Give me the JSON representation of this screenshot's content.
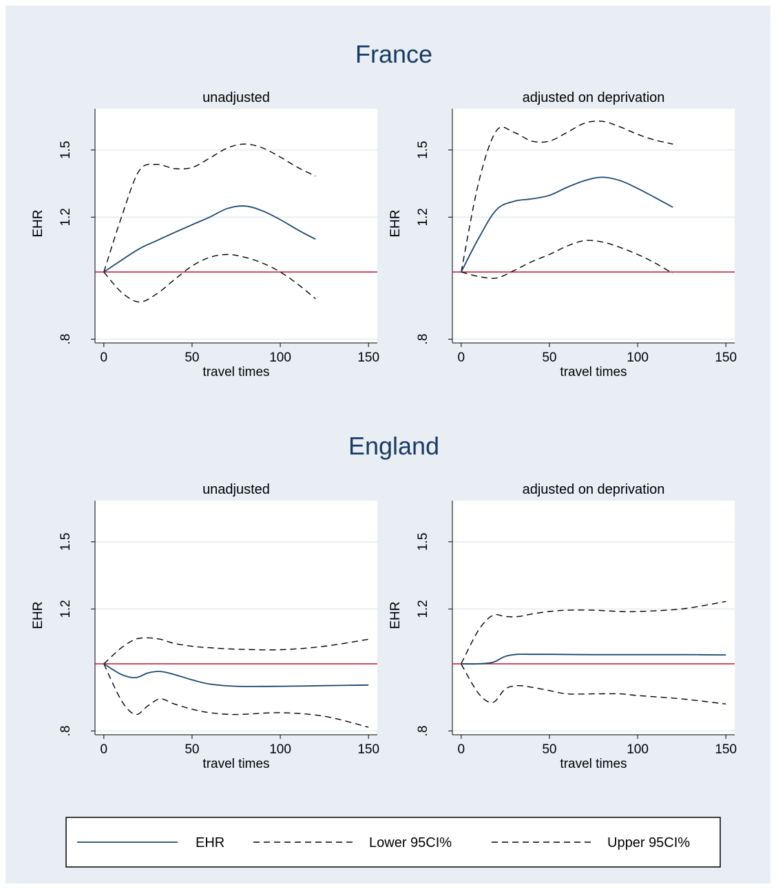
{
  "chart_data": [
    {
      "section": "France",
      "title": "unadjusted",
      "type": "line",
      "xlabel": "travel times",
      "ylabel": "EHR",
      "xlim": [
        -5,
        155
      ],
      "ylim": [
        0.79,
        1.72
      ],
      "y_scale": "log",
      "xticks": [
        0,
        50,
        100,
        150
      ],
      "xtick_labels": [
        "0",
        "50",
        "100",
        "150"
      ],
      "yticks": [
        0.8,
        1.2,
        1.5
      ],
      "ytick_labels": [
        ".8",
        "1.2",
        "1.5"
      ],
      "reference_line": 1,
      "grid": true,
      "series": [
        {
          "name": "EHR",
          "style": "solid",
          "color": "#1a476f",
          "x": [
            0,
            10,
            20,
            30,
            40,
            50,
            60,
            70,
            80,
            90,
            100,
            110,
            120
          ],
          "y": [
            1.0,
            1.04,
            1.08,
            1.11,
            1.14,
            1.17,
            1.2,
            1.235,
            1.245,
            1.225,
            1.19,
            1.15,
            1.115
          ]
        },
        {
          "name": "Lower 95CI%",
          "style": "dashed",
          "color": "#000000",
          "x": [
            0,
            10,
            20,
            30,
            40,
            50,
            60,
            70,
            80,
            90,
            100,
            110,
            120
          ],
          "y": [
            1.0,
            0.935,
            0.905,
            0.93,
            0.975,
            1.02,
            1.05,
            1.06,
            1.05,
            1.03,
            1.0,
            0.96,
            0.915
          ]
        },
        {
          "name": "Upper 95CI%",
          "style": "dashed",
          "color": "#000000",
          "x": [
            0,
            10,
            20,
            30,
            40,
            50,
            60,
            70,
            80,
            90,
            100,
            110,
            120
          ],
          "y": [
            1.0,
            1.2,
            1.4,
            1.43,
            1.41,
            1.415,
            1.46,
            1.51,
            1.53,
            1.51,
            1.465,
            1.415,
            1.375
          ]
        }
      ]
    },
    {
      "section": "France",
      "title": "adjusted on deprivation",
      "type": "line",
      "xlabel": "travel times",
      "ylabel": "EHR",
      "xlim": [
        -5,
        155
      ],
      "ylim": [
        0.79,
        1.72
      ],
      "y_scale": "log",
      "xticks": [
        0,
        50,
        100,
        150
      ],
      "xtick_labels": [
        "0",
        "50",
        "100",
        "150"
      ],
      "yticks": [
        0.8,
        1.2,
        1.5
      ],
      "ytick_labels": [
        ".8",
        "1.2",
        "1.5"
      ],
      "reference_line": 1,
      "grid": true,
      "series": [
        {
          "name": "EHR",
          "style": "solid",
          "color": "#1a476f",
          "x": [
            0,
            10,
            20,
            30,
            40,
            50,
            60,
            70,
            80,
            90,
            100,
            110,
            120
          ],
          "y": [
            1.0,
            1.12,
            1.23,
            1.265,
            1.275,
            1.29,
            1.325,
            1.355,
            1.37,
            1.355,
            1.32,
            1.28,
            1.24
          ]
        },
        {
          "name": "Lower 95CI%",
          "style": "dashed",
          "color": "#000000",
          "x": [
            0,
            10,
            20,
            30,
            40,
            50,
            60,
            70,
            80,
            90,
            100,
            110,
            120
          ],
          "y": [
            1.0,
            0.985,
            0.98,
            1.005,
            1.035,
            1.06,
            1.09,
            1.11,
            1.105,
            1.085,
            1.06,
            1.03,
            0.995
          ]
        },
        {
          "name": "Upper 95CI%",
          "style": "dashed",
          "color": "#000000",
          "x": [
            0,
            10,
            20,
            30,
            40,
            50,
            60,
            70,
            80,
            90,
            100,
            110,
            120
          ],
          "y": [
            1.0,
            1.35,
            1.6,
            1.59,
            1.545,
            1.545,
            1.59,
            1.64,
            1.65,
            1.62,
            1.58,
            1.55,
            1.53
          ]
        }
      ]
    },
    {
      "section": "England",
      "title": "unadjusted",
      "type": "line",
      "xlabel": "travel times",
      "ylabel": "EHR",
      "xlim": [
        -5,
        155
      ],
      "ylim": [
        0.79,
        1.72
      ],
      "y_scale": "log",
      "xticks": [
        0,
        50,
        100,
        150
      ],
      "xtick_labels": [
        "0",
        "50",
        "100",
        "150"
      ],
      "yticks": [
        0.8,
        1.2,
        1.5
      ],
      "ytick_labels": [
        ".8",
        "1.2",
        "1.5"
      ],
      "reference_line": 1,
      "grid": true,
      "series": [
        {
          "name": "EHR",
          "style": "solid",
          "color": "#1a476f",
          "x": [
            0,
            10,
            18,
            25,
            32,
            40,
            50,
            60,
            75,
            100,
            125,
            150
          ],
          "y": [
            1.0,
            0.965,
            0.955,
            0.97,
            0.975,
            0.965,
            0.948,
            0.935,
            0.928,
            0.928,
            0.93,
            0.932
          ]
        },
        {
          "name": "Lower 95CI%",
          "style": "dashed",
          "color": "#000000",
          "x": [
            0,
            10,
            18,
            25,
            32,
            40,
            50,
            60,
            75,
            100,
            125,
            150
          ],
          "y": [
            1.0,
            0.885,
            0.845,
            0.87,
            0.89,
            0.875,
            0.86,
            0.85,
            0.845,
            0.85,
            0.84,
            0.81
          ]
        },
        {
          "name": "Upper 95CI%",
          "style": "dashed",
          "color": "#000000",
          "x": [
            0,
            10,
            18,
            25,
            32,
            40,
            50,
            60,
            75,
            100,
            125,
            150
          ],
          "y": [
            1.0,
            1.055,
            1.085,
            1.09,
            1.085,
            1.07,
            1.06,
            1.055,
            1.05,
            1.048,
            1.06,
            1.085
          ]
        }
      ]
    },
    {
      "section": "England",
      "title": "adjusted on deprivation",
      "type": "line",
      "xlabel": "travel times",
      "ylabel": "EHR",
      "xlim": [
        -5,
        155
      ],
      "ylim": [
        0.79,
        1.72
      ],
      "y_scale": "log",
      "xticks": [
        0,
        50,
        100,
        150
      ],
      "xtick_labels": [
        "0",
        "50",
        "100",
        "150"
      ],
      "yticks": [
        0.8,
        1.2,
        1.5
      ],
      "ytick_labels": [
        ".8",
        "1.2",
        "1.5"
      ],
      "reference_line": 1,
      "grid": true,
      "series": [
        {
          "name": "EHR",
          "style": "solid",
          "color": "#1a476f",
          "x": [
            0,
            10,
            18,
            25,
            32,
            40,
            50,
            75,
            100,
            125,
            150
          ],
          "y": [
            1.0,
            1.0,
            1.005,
            1.025,
            1.032,
            1.032,
            1.032,
            1.031,
            1.031,
            1.031,
            1.03
          ]
        },
        {
          "name": "Lower 95CI%",
          "style": "dashed",
          "color": "#000000",
          "x": [
            0,
            10,
            18,
            25,
            32,
            40,
            50,
            60,
            75,
            90,
            100,
            125,
            150
          ],
          "y": [
            0.999,
            0.905,
            0.88,
            0.92,
            0.93,
            0.925,
            0.915,
            0.905,
            0.905,
            0.905,
            0.9,
            0.89,
            0.875
          ]
        },
        {
          "name": "Upper 95CI%",
          "style": "dashed",
          "color": "#000000",
          "x": [
            0,
            10,
            18,
            25,
            32,
            40,
            50,
            60,
            75,
            90,
            100,
            125,
            150
          ],
          "y": [
            1.001,
            1.12,
            1.175,
            1.17,
            1.17,
            1.18,
            1.19,
            1.195,
            1.195,
            1.19,
            1.19,
            1.2,
            1.23
          ]
        }
      ]
    }
  ],
  "sections": [
    "France",
    "England"
  ],
  "legend": {
    "placement": "bottom",
    "items": [
      {
        "label": "EHR",
        "style": "solid",
        "color": "#1a476f"
      },
      {
        "label": "Lower 95CI%",
        "style": "dashed",
        "color": "#000000"
      },
      {
        "label": "Upper 95CI%",
        "style": "dashed",
        "color": "#000000"
      }
    ]
  },
  "colors": {
    "background": "#e8eef4",
    "plot_background": "#ffffff",
    "estimate": "#1a476f",
    "confidence": "#000000",
    "reference": "#c8102e",
    "section_title": "#1a3a66",
    "grid": "#e6ecef"
  }
}
